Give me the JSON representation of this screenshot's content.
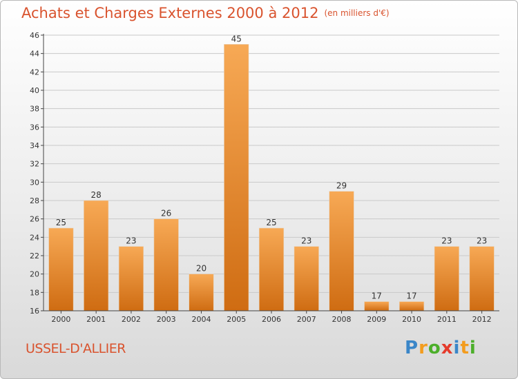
{
  "title": "Achats et Charges Externes 2000 à 2012",
  "subtitle": "(en milliers d'€)",
  "city": "USSEL-D'ALLIER",
  "brand": {
    "letters": [
      {
        "ch": "P",
        "color": "#3a86c8"
      },
      {
        "ch": "r",
        "color": "#f39c1e"
      },
      {
        "ch": "o",
        "color": "#4caf2a"
      },
      {
        "ch": "x",
        "color": "#e53b2c"
      },
      {
        "ch": "i",
        "color": "#3a86c8"
      },
      {
        "ch": "t",
        "color": "#f39c1e"
      },
      {
        "ch": "i",
        "color": "#4caf2a"
      }
    ]
  },
  "colors": {
    "title": "#d9532e",
    "bar_light": "#f7a955",
    "bar_dark": "#cf6c12",
    "grid": "#c9c9c9",
    "axis": "#444444"
  },
  "chart_data": {
    "type": "bar",
    "categories": [
      "2000",
      "2001",
      "2002",
      "2003",
      "2004",
      "2005",
      "2006",
      "2007",
      "2008",
      "2009",
      "2010",
      "2011",
      "2012"
    ],
    "values": [
      25,
      28,
      23,
      26,
      20,
      45,
      25,
      23,
      29,
      17,
      17,
      23,
      23
    ],
    "ylim": [
      16,
      46
    ],
    "yticks": [
      16,
      18,
      20,
      22,
      24,
      26,
      28,
      30,
      32,
      34,
      36,
      38,
      40,
      42,
      44,
      46
    ],
    "grid": true,
    "data_labels": true
  }
}
